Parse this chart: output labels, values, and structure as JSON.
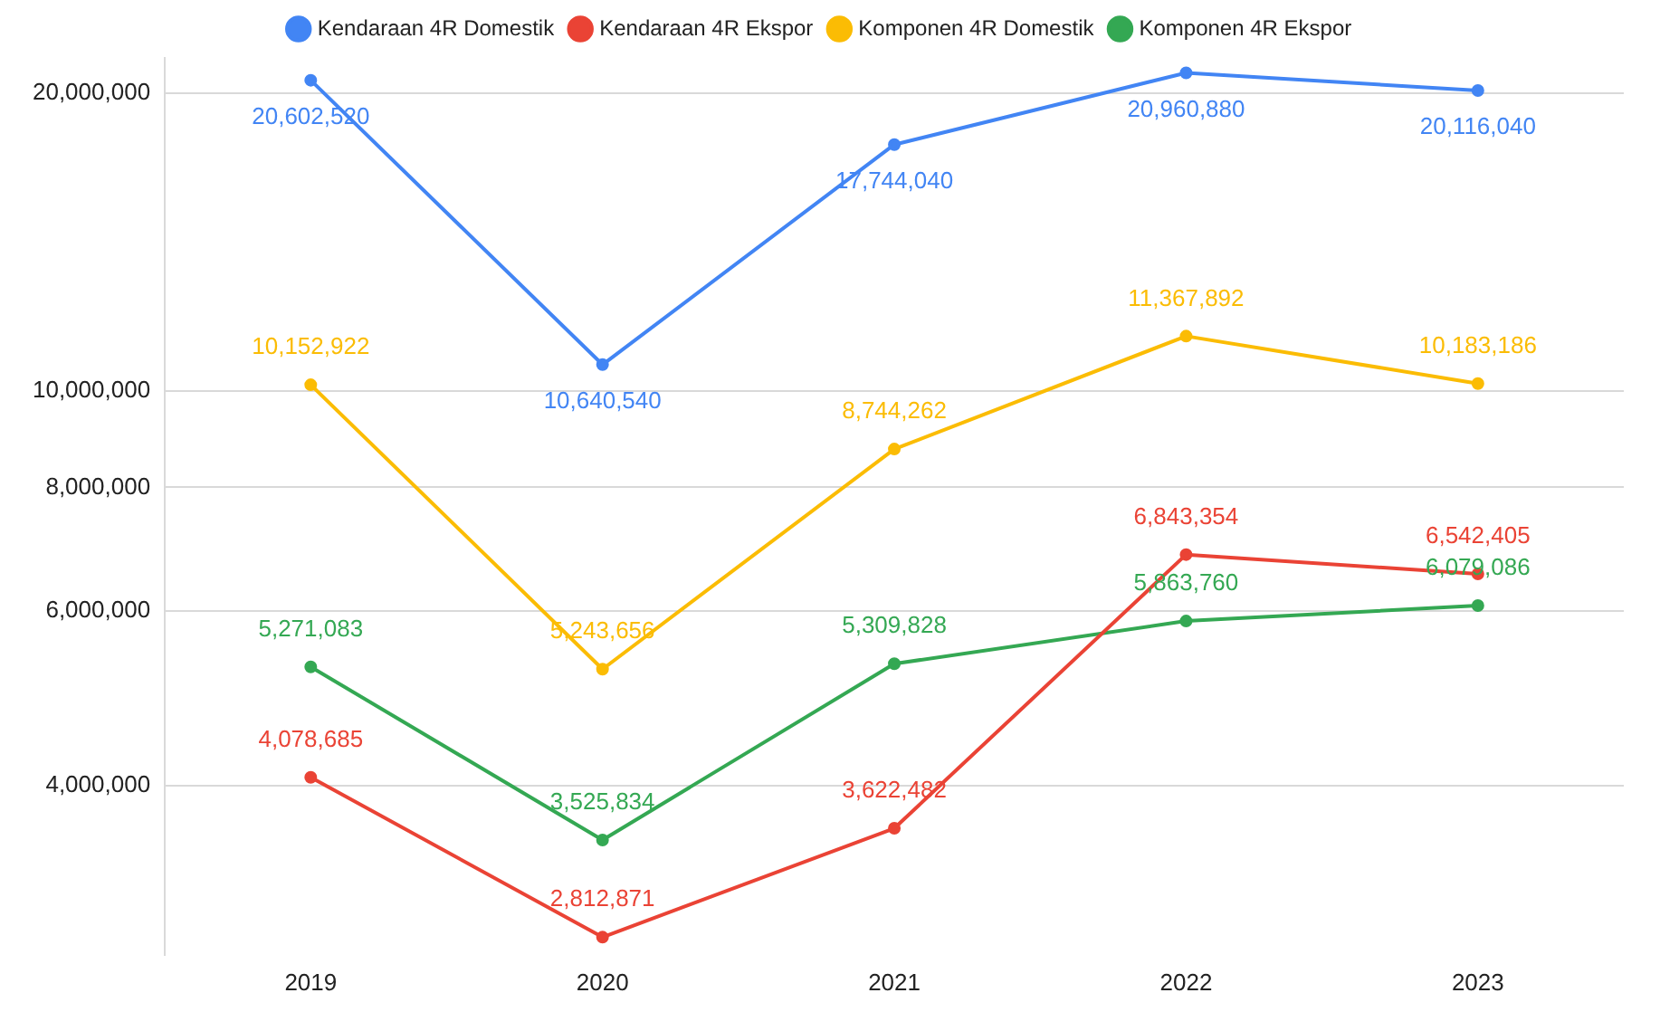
{
  "chart_data": {
    "type": "line",
    "categories": [
      "2019",
      "2020",
      "2021",
      "2022",
      "2023"
    ],
    "series": [
      {
        "name": "Kendaraan 4R Domestik",
        "color": "#4285f4",
        "values": [
          20602520,
          10640540,
          17744040,
          20960880,
          20116040
        ],
        "value_labels": [
          "20,602,520",
          "10,640,540",
          "17,744,040",
          "20,960,880",
          "20,116,040"
        ]
      },
      {
        "name": "Kendaraan 4R Ekspor",
        "color": "#ea4335",
        "values": [
          4078685,
          2812871,
          3622482,
          6843354,
          6542405
        ],
        "value_labels": [
          "4,078,685",
          "2,812,871",
          "3,622,482",
          "6,843,354",
          "6,542,405"
        ]
      },
      {
        "name": "Komponen 4R Domestik",
        "color": "#fbbc04",
        "values": [
          10152922,
          5243656,
          8744262,
          11367892,
          10183186
        ],
        "value_labels": [
          "10,152,922",
          "5,243,656",
          "8,744,262",
          "11,367,892",
          "10,183,186"
        ]
      },
      {
        "name": "Komponen 4R Ekspor",
        "color": "#34a853",
        "values": [
          5271083,
          3525834,
          5309828,
          5863760,
          6079086
        ],
        "value_labels": [
          "5,271,083",
          "3,525,834",
          "5,309,828",
          "5,863,760",
          "6,079,086"
        ]
      }
    ],
    "log": "y",
    "ylim": [
      2700000,
      21700000
    ],
    "yticks": [
      {
        "value": 4000000,
        "label": "4,000,000"
      },
      {
        "value": 6000000,
        "label": "6,000,000"
      },
      {
        "value": 8000000,
        "label": "8,000,000"
      },
      {
        "value": 10000000,
        "label": "10,000,000"
      },
      {
        "value": 20000000,
        "label": "20,000,000"
      }
    ],
    "grid": "y",
    "legend": "top",
    "marker": "circle",
    "line_style": "solid"
  }
}
